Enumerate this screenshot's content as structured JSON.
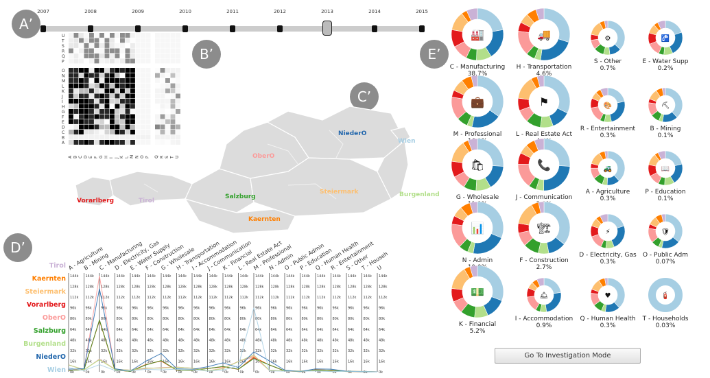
{
  "panel_labels": {
    "a": "A’",
    "b": "B’",
    "c": "C’",
    "d": "D’",
    "e": "E’"
  },
  "timeline": {
    "years": [
      "2007",
      "2008",
      "2009",
      "2010",
      "2011",
      "2012",
      "2013",
      "2014",
      "2015"
    ],
    "selected": "2013"
  },
  "matrix": {
    "rows": [
      "U",
      "T",
      "S",
      "R",
      "Q",
      "P",
      "O",
      "N",
      "M",
      "L",
      "K",
      "J",
      "I",
      "H",
      "G",
      "F",
      "E",
      "D",
      "C",
      "B",
      "A"
    ],
    "cols": [
      "A",
      "B",
      "C",
      "D",
      "E",
      "F",
      "G",
      "H",
      "I",
      "J",
      "K",
      "L",
      "M",
      "N",
      "O",
      "P",
      "Q",
      "R",
      "S",
      "T",
      "U"
    ]
  },
  "map": {
    "regions": [
      {
        "name": "NiederO",
        "color": "#2166ac"
      },
      {
        "name": "Wien",
        "color": "#a6cee3"
      },
      {
        "name": "OberO",
        "color": "#fb9a99"
      },
      {
        "name": "Steiermark",
        "color": "#fdbf6f"
      },
      {
        "name": "Burgenland",
        "color": "#b2df8a"
      },
      {
        "name": "Salzburg",
        "color": "#33a02c"
      },
      {
        "name": "Kaernten",
        "color": "#ff7f00"
      },
      {
        "name": "Tirol",
        "color": "#cab2d6"
      },
      {
        "name": "Vorarlberg",
        "color": "#e31a1c"
      }
    ]
  },
  "parallel": {
    "states": [
      {
        "name": "Tirol",
        "color": "#cab2d6"
      },
      {
        "name": "Kaernten",
        "color": "#ff7f00"
      },
      {
        "name": "Steiermark",
        "color": "#fdbf6f"
      },
      {
        "name": "Vorarlberg",
        "color": "#e31a1c"
      },
      {
        "name": "OberO",
        "color": "#fb9a99"
      },
      {
        "name": "Salzburg",
        "color": "#33a02c"
      },
      {
        "name": "Burgenland",
        "color": "#b2df8a"
      },
      {
        "name": "NiederO",
        "color": "#2166ac"
      },
      {
        "name": "Wien",
        "color": "#a6cee3"
      }
    ],
    "axes": [
      "A - Agriculture",
      "B - Mining",
      "C - Manufacturing",
      "D - Electricity, Gas",
      "E - Water Supply",
      "F - Construction",
      "G - Wholesale",
      "H - Transportation",
      "I - Accommodation",
      "J - Communication",
      "K - Financial",
      "L - Real Estate Act",
      "M - Professional",
      "N - Admin",
      "O - Public Admin",
      "P - Education",
      "Q - Human Health",
      "R - Entertainment",
      "S - Other",
      "T - Househ",
      "U"
    ],
    "ticks": [
      "144k",
      "128k",
      "112k",
      "96k",
      "80k",
      "64k",
      "48k",
      "32k",
      "16k",
      "0k"
    ]
  },
  "donuts": [
    {
      "name": "C - Manufacturing",
      "pct": "38.7%",
      "icon": "factory-icon",
      "glyph": "🏭",
      "big": true
    },
    {
      "name": "H - Transportation",
      "pct": "4.6%",
      "icon": "truck-icon",
      "glyph": "🚚",
      "big": true
    },
    {
      "name": "S - Other",
      "pct": "0.7%",
      "icon": "gear-icon",
      "glyph": "⚙",
      "big": false
    },
    {
      "name": "E - Water Supp",
      "pct": "0.2%",
      "icon": "faucet-icon",
      "glyph": "🚰",
      "big": false
    },
    {
      "name": "M - Professional",
      "pct": "16.1%",
      "icon": "briefcase-icon",
      "glyph": "💼",
      "big": true
    },
    {
      "name": "L - Real Estate Act",
      "pct": "4.4%",
      "icon": "flag-icon",
      "glyph": "⚑",
      "big": true
    },
    {
      "name": "R - Entertainment",
      "pct": "0.3%",
      "icon": "palette-icon",
      "glyph": "🎨",
      "big": false
    },
    {
      "name": "B - Mining",
      "pct": "0.1%",
      "icon": "mining-icon",
      "glyph": "⛏",
      "big": false
    },
    {
      "name": "G - Wholesale",
      "pct": "11.3%",
      "icon": "shopping-bag-icon",
      "glyph": "🛍",
      "big": true
    },
    {
      "name": "J - Communication",
      "pct": "2.8%",
      "icon": "phone-icon",
      "glyph": "📞",
      "big": true
    },
    {
      "name": "A - Agriculture",
      "pct": "0.3%",
      "icon": "tractor-icon",
      "glyph": "🚜",
      "big": false
    },
    {
      "name": "P - Education",
      "pct": "0.1%",
      "icon": "book-icon",
      "glyph": "📖",
      "big": false
    },
    {
      "name": "N - Admin",
      "pct": "10.9%",
      "icon": "admin-chart-icon",
      "glyph": "📊",
      "big": true
    },
    {
      "name": "F - Construction",
      "pct": "2.7%",
      "icon": "crane-icon",
      "glyph": "🏗",
      "big": true
    },
    {
      "name": "D - Electricity, Gas",
      "pct": "0.3%",
      "icon": "lightning-icon",
      "glyph": "⚡",
      "big": false
    },
    {
      "name": "O - Public Adm",
      "pct": "0.07%",
      "icon": "shield-icon",
      "glyph": "🛡",
      "big": false
    },
    {
      "name": "K - Financial",
      "pct": "5.2%",
      "icon": "money-icon",
      "glyph": "💵",
      "big": true
    },
    {
      "name": "I - Accommodation",
      "pct": "0.9%",
      "icon": "cloche-icon",
      "glyph": "🛎",
      "big": false
    },
    {
      "name": "Q - Human Health",
      "pct": "0.3%",
      "icon": "heartbeat-icon",
      "glyph": "♥",
      "big": false
    },
    {
      "name": "T - Households",
      "pct": "0.03%",
      "icon": "household-icon",
      "glyph": "🧯",
      "big": false
    }
  ],
  "button": {
    "label": "Go To Investigation Mode"
  }
}
